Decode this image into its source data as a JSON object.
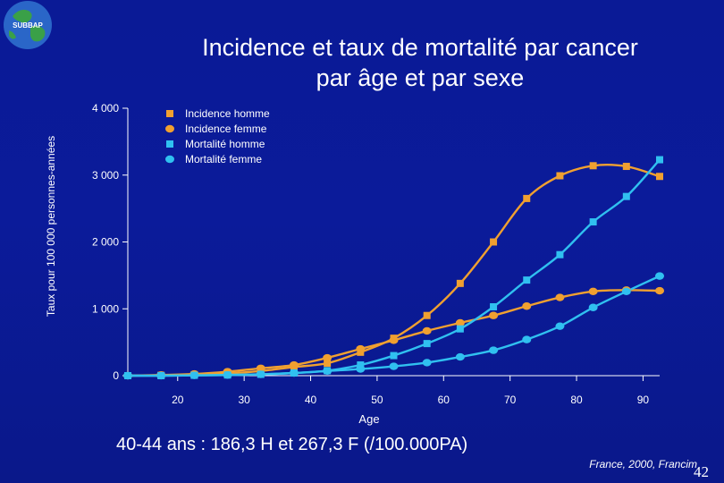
{
  "logo": {
    "label": "SUBBAP",
    "icon": "globe-icon"
  },
  "slide": {
    "title_line1": "Incidence et taux de mortalité par cancer",
    "title_line2": "par âge et par sexe",
    "caption": "40-44 ans : 186,3 H et 267,3 F (/100.000PA)",
    "source": "France, 2000, Francim",
    "page_number": "42"
  },
  "colors": {
    "background": "#0a1a96",
    "incidence": "#f0a030",
    "mortality": "#30c0f0",
    "text": "#ffffff"
  },
  "chart_data": {
    "type": "line",
    "xlabel": "Age",
    "ylabel": "Taux pour 100 000 personnes-années",
    "ylim": [
      0,
      4000
    ],
    "xlim": [
      12.5,
      92.5
    ],
    "x_ticks": [
      20,
      30,
      40,
      50,
      60,
      70,
      80,
      90
    ],
    "x_tick_labels": [
      "20",
      "30",
      "40",
      "50",
      "60",
      "70",
      "80",
      "90"
    ],
    "y_ticks": [
      0,
      1000,
      2000,
      3000,
      4000
    ],
    "y_tick_labels": [
      "0",
      "1 000",
      "2 000",
      "3 000",
      "4 000"
    ],
    "legend_position": "top-left",
    "grid": false,
    "x": [
      12.5,
      17.5,
      22.5,
      27.5,
      32.5,
      37.5,
      42.5,
      47.5,
      52.5,
      57.5,
      62.5,
      67.5,
      72.5,
      77.5,
      82.5,
      87.5,
      92.5
    ],
    "series": [
      {
        "name": "Incidence homme",
        "marker": "square",
        "color": "#f0a030",
        "values": [
          0,
          5,
          15,
          35,
          70,
          130,
          186,
          350,
          560,
          900,
          1380,
          2000,
          2650,
          2990,
          3140,
          3130,
          2980
        ]
      },
      {
        "name": "Incidence femme",
        "marker": "circle",
        "color": "#f0a030",
        "values": [
          0,
          10,
          25,
          60,
          110,
          160,
          267,
          400,
          530,
          670,
          790,
          900,
          1040,
          1170,
          1260,
          1280,
          1270
        ]
      },
      {
        "name": "Mortalité homme",
        "marker": "square",
        "color": "#30c0f0",
        "values": [
          0,
          0,
          5,
          10,
          20,
          40,
          75,
          160,
          300,
          480,
          700,
          1030,
          1430,
          1810,
          2300,
          2680,
          3230
        ]
      },
      {
        "name": "Mortalité femme",
        "marker": "circle",
        "color": "#30c0f0",
        "values": [
          0,
          0,
          5,
          10,
          20,
          40,
          70,
          100,
          140,
          195,
          280,
          380,
          540,
          740,
          1020,
          1260,
          1490
        ]
      }
    ]
  }
}
